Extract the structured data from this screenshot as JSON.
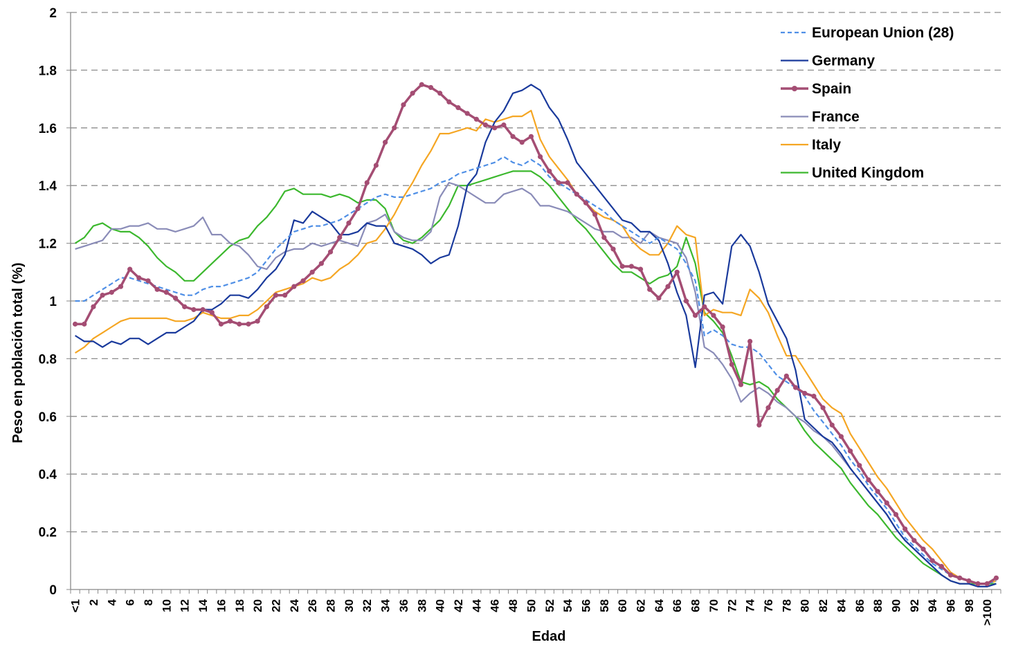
{
  "chart_data": {
    "type": "line",
    "xlabel": "Edad",
    "ylabel": "Peso en población total (%)",
    "ylim": [
      0,
      2
    ],
    "yticks": [
      "0",
      "0.2",
      "0.4",
      "0.6",
      "0.8",
      "1",
      "1.2",
      "1.4",
      "1.6",
      "1.8",
      "2"
    ],
    "grid": "horizontal dashed",
    "legend_position": "top-right",
    "x_tick_labels": [
      "<1",
      "2",
      "4",
      "6",
      "8",
      "10",
      "12",
      "14",
      "16",
      "18",
      "20",
      "22",
      "24",
      "26",
      "28",
      "30",
      "32",
      "34",
      "36",
      "38",
      "40",
      "42",
      "44",
      "46",
      "48",
      "50",
      "52",
      "54",
      "56",
      "58",
      "60",
      "62",
      "64",
      "66",
      "68",
      "70",
      "72",
      "74",
      "76",
      "78",
      "80",
      "82",
      "84",
      "86",
      "88",
      "90",
      "92",
      "94",
      "96",
      "98",
      ">100"
    ],
    "series": [
      {
        "name": "European Union (28)",
        "color": "#4f8fe6",
        "style": "dashed",
        "values": [
          1.0,
          1.0,
          1.02,
          1.04,
          1.06,
          1.08,
          1.08,
          1.07,
          1.06,
          1.05,
          1.04,
          1.03,
          1.02,
          1.02,
          1.04,
          1.05,
          1.05,
          1.06,
          1.07,
          1.08,
          1.1,
          1.14,
          1.18,
          1.21,
          1.24,
          1.25,
          1.26,
          1.26,
          1.27,
          1.28,
          1.3,
          1.32,
          1.34,
          1.36,
          1.37,
          1.36,
          1.36,
          1.37,
          1.38,
          1.39,
          1.41,
          1.42,
          1.44,
          1.45,
          1.46,
          1.47,
          1.48,
          1.5,
          1.48,
          1.47,
          1.49,
          1.47,
          1.43,
          1.41,
          1.39,
          1.37,
          1.35,
          1.33,
          1.31,
          1.28,
          1.26,
          1.24,
          1.22,
          1.2,
          1.22,
          1.2,
          1.18,
          1.13,
          1.07,
          0.88,
          0.9,
          0.88,
          0.85,
          0.84,
          0.84,
          0.82,
          0.78,
          0.74,
          0.72,
          0.7,
          0.67,
          0.62,
          0.58,
          0.54,
          0.5,
          0.45,
          0.41,
          0.36,
          0.32,
          0.28,
          0.23,
          0.18,
          0.15,
          0.12,
          0.09,
          0.07,
          0.05,
          0.04,
          0.03,
          0.02,
          0.02,
          0.03
        ]
      },
      {
        "name": "Germany",
        "color": "#1a3a9c",
        "style": "solid",
        "values": [
          0.88,
          0.86,
          0.86,
          0.84,
          0.86,
          0.85,
          0.87,
          0.87,
          0.85,
          0.87,
          0.89,
          0.89,
          0.91,
          0.93,
          0.97,
          0.97,
          0.99,
          1.02,
          1.02,
          1.01,
          1.04,
          1.08,
          1.11,
          1.16,
          1.28,
          1.27,
          1.31,
          1.29,
          1.27,
          1.23,
          1.23,
          1.24,
          1.27,
          1.26,
          1.26,
          1.2,
          1.19,
          1.18,
          1.16,
          1.13,
          1.15,
          1.16,
          1.26,
          1.4,
          1.44,
          1.55,
          1.62,
          1.66,
          1.72,
          1.73,
          1.75,
          1.73,
          1.67,
          1.63,
          1.56,
          1.48,
          1.44,
          1.4,
          1.36,
          1.32,
          1.28,
          1.27,
          1.24,
          1.24,
          1.21,
          1.13,
          1.03,
          0.95,
          0.77,
          1.02,
          1.03,
          0.99,
          1.19,
          1.23,
          1.19,
          1.1,
          0.99,
          0.93,
          0.87,
          0.76,
          0.59,
          0.56,
          0.53,
          0.51,
          0.47,
          0.42,
          0.38,
          0.34,
          0.3,
          0.26,
          0.21,
          0.17,
          0.14,
          0.11,
          0.08,
          0.05,
          0.03,
          0.02,
          0.02,
          0.01,
          0.01,
          0.02
        ]
      },
      {
        "name": "Spain",
        "color": "#a44d73",
        "style": "markers",
        "values": [
          0.92,
          0.92,
          0.98,
          1.02,
          1.03,
          1.05,
          1.11,
          1.08,
          1.07,
          1.04,
          1.03,
          1.01,
          0.98,
          0.97,
          0.97,
          0.96,
          0.92,
          0.93,
          0.92,
          0.92,
          0.93,
          0.98,
          1.02,
          1.02,
          1.05,
          1.07,
          1.1,
          1.13,
          1.17,
          1.22,
          1.27,
          1.32,
          1.41,
          1.47,
          1.55,
          1.6,
          1.68,
          1.72,
          1.75,
          1.74,
          1.72,
          1.69,
          1.67,
          1.65,
          1.63,
          1.61,
          1.6,
          1.61,
          1.57,
          1.55,
          1.57,
          1.5,
          1.45,
          1.41,
          1.41,
          1.37,
          1.34,
          1.3,
          1.22,
          1.18,
          1.12,
          1.12,
          1.11,
          1.04,
          1.01,
          1.05,
          1.1,
          1.0,
          0.95,
          0.98,
          0.95,
          0.91,
          0.78,
          0.71,
          0.86,
          0.57,
          0.63,
          0.69,
          0.74,
          0.7,
          0.68,
          0.67,
          0.63,
          0.57,
          0.53,
          0.48,
          0.43,
          0.38,
          0.34,
          0.3,
          0.26,
          0.21,
          0.17,
          0.14,
          0.1,
          0.08,
          0.05,
          0.04,
          0.03,
          0.02,
          0.02,
          0.04
        ]
      },
      {
        "name": "France",
        "color": "#8a8cb8",
        "style": "solid",
        "values": [
          1.18,
          1.19,
          1.2,
          1.21,
          1.25,
          1.25,
          1.26,
          1.26,
          1.27,
          1.25,
          1.25,
          1.24,
          1.25,
          1.26,
          1.29,
          1.23,
          1.23,
          1.2,
          1.19,
          1.16,
          1.12,
          1.11,
          1.15,
          1.17,
          1.18,
          1.18,
          1.2,
          1.19,
          1.2,
          1.21,
          1.2,
          1.19,
          1.27,
          1.28,
          1.3,
          1.24,
          1.22,
          1.21,
          1.21,
          1.24,
          1.36,
          1.41,
          1.4,
          1.38,
          1.36,
          1.34,
          1.34,
          1.37,
          1.38,
          1.39,
          1.37,
          1.33,
          1.33,
          1.32,
          1.31,
          1.29,
          1.27,
          1.25,
          1.24,
          1.24,
          1.22,
          1.22,
          1.2,
          1.24,
          1.22,
          1.21,
          1.2,
          1.15,
          1.03,
          0.84,
          0.82,
          0.78,
          0.73,
          0.65,
          0.68,
          0.7,
          0.68,
          0.65,
          0.63,
          0.6,
          0.58,
          0.55,
          0.53,
          0.5,
          0.46,
          0.42,
          0.38,
          0.34,
          0.3,
          0.26,
          0.21,
          0.17,
          0.14,
          0.11,
          0.08,
          0.05,
          0.03,
          0.02,
          0.02,
          0.01,
          0.01,
          0.02
        ]
      },
      {
        "name": "Italy",
        "color": "#f5a623",
        "style": "solid",
        "values": [
          0.82,
          0.84,
          0.87,
          0.89,
          0.91,
          0.93,
          0.94,
          0.94,
          0.94,
          0.94,
          0.94,
          0.93,
          0.93,
          0.94,
          0.96,
          0.95,
          0.94,
          0.94,
          0.95,
          0.95,
          0.97,
          1.0,
          1.03,
          1.04,
          1.05,
          1.06,
          1.08,
          1.07,
          1.08,
          1.11,
          1.13,
          1.16,
          1.2,
          1.21,
          1.25,
          1.3,
          1.36,
          1.41,
          1.47,
          1.52,
          1.58,
          1.58,
          1.59,
          1.6,
          1.59,
          1.63,
          1.62,
          1.63,
          1.64,
          1.64,
          1.66,
          1.56,
          1.5,
          1.46,
          1.42,
          1.37,
          1.34,
          1.31,
          1.29,
          1.28,
          1.26,
          1.21,
          1.18,
          1.16,
          1.16,
          1.2,
          1.26,
          1.23,
          1.22,
          0.95,
          0.97,
          0.96,
          0.96,
          0.95,
          1.04,
          1.01,
          0.96,
          0.88,
          0.81,
          0.81,
          0.76,
          0.71,
          0.66,
          0.63,
          0.61,
          0.54,
          0.49,
          0.44,
          0.39,
          0.35,
          0.3,
          0.25,
          0.21,
          0.17,
          0.14,
          0.1,
          0.06,
          0.04,
          0.03,
          0.02,
          0.02,
          0.03
        ]
      },
      {
        "name": "United Kingdom",
        "color": "#3cb82e",
        "style": "solid",
        "values": [
          1.2,
          1.22,
          1.26,
          1.27,
          1.25,
          1.24,
          1.24,
          1.22,
          1.19,
          1.15,
          1.12,
          1.1,
          1.07,
          1.07,
          1.1,
          1.13,
          1.16,
          1.19,
          1.21,
          1.22,
          1.26,
          1.29,
          1.33,
          1.38,
          1.39,
          1.37,
          1.37,
          1.37,
          1.36,
          1.37,
          1.36,
          1.34,
          1.35,
          1.35,
          1.32,
          1.24,
          1.21,
          1.2,
          1.22,
          1.25,
          1.28,
          1.33,
          1.4,
          1.4,
          1.41,
          1.42,
          1.43,
          1.44,
          1.45,
          1.45,
          1.45,
          1.43,
          1.4,
          1.36,
          1.32,
          1.28,
          1.25,
          1.21,
          1.17,
          1.13,
          1.1,
          1.1,
          1.08,
          1.06,
          1.08,
          1.09,
          1.12,
          1.22,
          1.13,
          0.96,
          0.93,
          0.89,
          0.81,
          0.72,
          0.71,
          0.72,
          0.7,
          0.66,
          0.63,
          0.6,
          0.55,
          0.51,
          0.48,
          0.45,
          0.42,
          0.37,
          0.33,
          0.29,
          0.26,
          0.22,
          0.18,
          0.15,
          0.12,
          0.09,
          0.07,
          0.05,
          0.03,
          0.02,
          0.02,
          0.02,
          0.02,
          0.02
        ]
      }
    ]
  }
}
